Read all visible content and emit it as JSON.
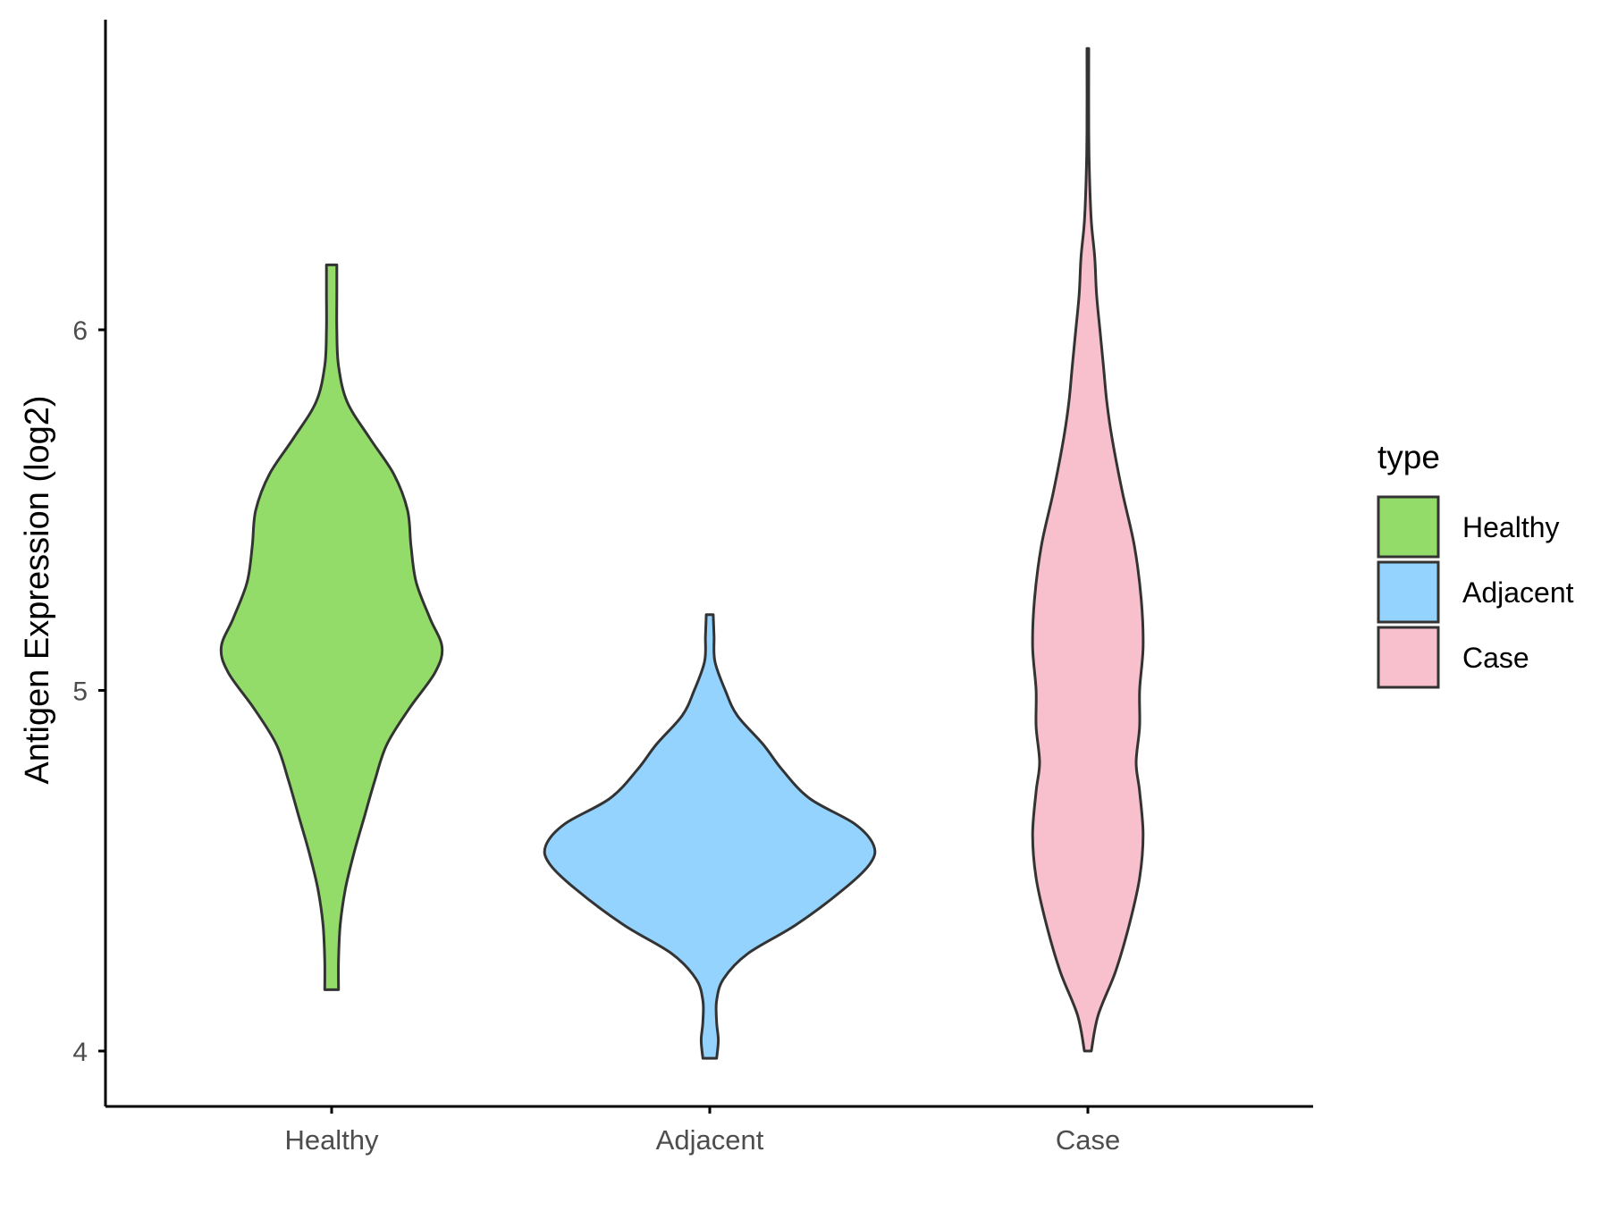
{
  "chart_data": {
    "type": "violin",
    "title": "",
    "xlabel": "",
    "ylabel": "Antigen Expression (log2)",
    "categories": [
      "Healthy",
      "Adjacent",
      "Case"
    ],
    "y_ticks": [
      "4",
      "5",
      "6"
    ],
    "ylim": [
      3.84,
      6.95
    ],
    "grid": false,
    "legend": {
      "title": "type",
      "position": "right",
      "entries": [
        "Healthy",
        "Adjacent",
        "Case"
      ]
    },
    "colors": {
      "Healthy": "#93dc6a",
      "Adjacent": "#93d3fe",
      "Case": "#f7c0cc",
      "outline": "#333333",
      "axis": "#000000",
      "tick_label": "#4d4d4d"
    },
    "series": [
      {
        "name": "Healthy",
        "min": 4.17,
        "max": 6.18,
        "density": [
          [
            4.17,
            0.04
          ],
          [
            4.25,
            0.04
          ],
          [
            4.35,
            0.05
          ],
          [
            4.45,
            0.08
          ],
          [
            4.55,
            0.13
          ],
          [
            4.65,
            0.19
          ],
          [
            4.75,
            0.25
          ],
          [
            4.85,
            0.32
          ],
          [
            4.95,
            0.45
          ],
          [
            5.05,
            0.6
          ],
          [
            5.12,
            0.64
          ],
          [
            5.2,
            0.57
          ],
          [
            5.3,
            0.49
          ],
          [
            5.4,
            0.46
          ],
          [
            5.5,
            0.44
          ],
          [
            5.6,
            0.36
          ],
          [
            5.7,
            0.22
          ],
          [
            5.8,
            0.09
          ],
          [
            5.9,
            0.04
          ],
          [
            6.0,
            0.03
          ],
          [
            6.1,
            0.03
          ],
          [
            6.18,
            0.03
          ]
        ]
      },
      {
        "name": "Adjacent",
        "min": 3.98,
        "max": 5.21,
        "density": [
          [
            3.98,
            0.04
          ],
          [
            4.03,
            0.05
          ],
          [
            4.08,
            0.04
          ],
          [
            4.14,
            0.04
          ],
          [
            4.2,
            0.08
          ],
          [
            4.27,
            0.22
          ],
          [
            4.35,
            0.5
          ],
          [
            4.45,
            0.78
          ],
          [
            4.52,
            0.93
          ],
          [
            4.57,
            0.95
          ],
          [
            4.63,
            0.84
          ],
          [
            4.7,
            0.58
          ],
          [
            4.78,
            0.42
          ],
          [
            4.85,
            0.31
          ],
          [
            4.93,
            0.16
          ],
          [
            5.0,
            0.09
          ],
          [
            5.08,
            0.03
          ],
          [
            5.15,
            0.025
          ],
          [
            5.21,
            0.02
          ]
        ]
      },
      {
        "name": "Case",
        "min": 4.0,
        "max": 6.78,
        "density": [
          [
            4.0,
            0.02
          ],
          [
            4.1,
            0.06
          ],
          [
            4.22,
            0.16
          ],
          [
            4.35,
            0.24
          ],
          [
            4.48,
            0.3
          ],
          [
            4.6,
            0.32
          ],
          [
            4.72,
            0.3
          ],
          [
            4.8,
            0.28
          ],
          [
            4.9,
            0.3
          ],
          [
            5.0,
            0.3
          ],
          [
            5.12,
            0.32
          ],
          [
            5.25,
            0.31
          ],
          [
            5.4,
            0.27
          ],
          [
            5.55,
            0.2
          ],
          [
            5.7,
            0.14
          ],
          [
            5.8,
            0.11
          ],
          [
            5.9,
            0.09
          ],
          [
            6.0,
            0.07
          ],
          [
            6.1,
            0.05
          ],
          [
            6.2,
            0.04
          ],
          [
            6.3,
            0.02
          ],
          [
            6.42,
            0.01
          ],
          [
            6.55,
            0.005
          ],
          [
            6.78,
            0.005
          ]
        ]
      }
    ]
  }
}
